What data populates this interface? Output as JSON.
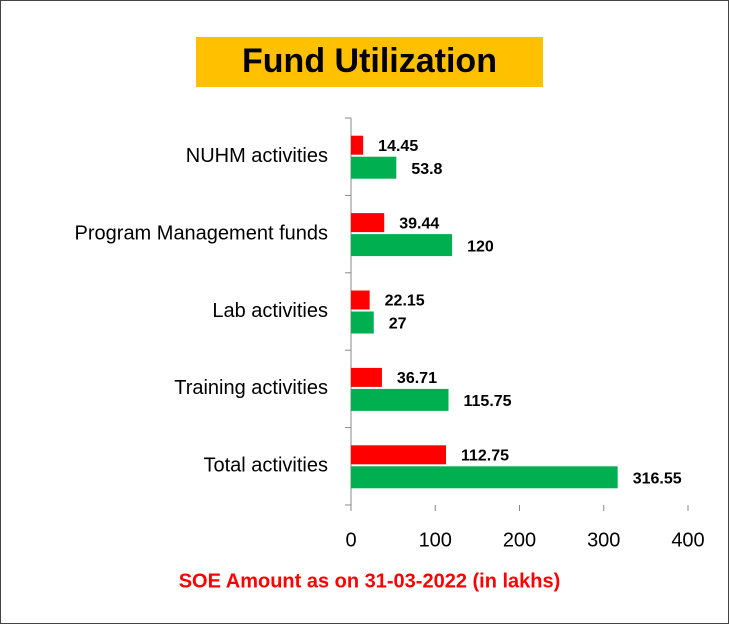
{
  "chart_data": {
    "type": "hbar",
    "title": "Fund Utilization",
    "xlabel": "SOE Amount as on 31-03-2022 (in lakhs)",
    "categories": [
      "NUHM activities",
      "Program Management funds",
      "Lab activities",
      "Training activities",
      "Total activities"
    ],
    "series": [
      {
        "color": "#ff0000",
        "values": [
          14.45,
          39.44,
          22.15,
          36.71,
          112.75
        ]
      },
      {
        "color": "#00b050",
        "values": [
          53.8,
          120,
          27,
          115.75,
          316.55
        ]
      }
    ],
    "xlim": [
      0,
      400
    ],
    "xticks": [
      0,
      100,
      200,
      300,
      400
    ],
    "grid": false
  }
}
